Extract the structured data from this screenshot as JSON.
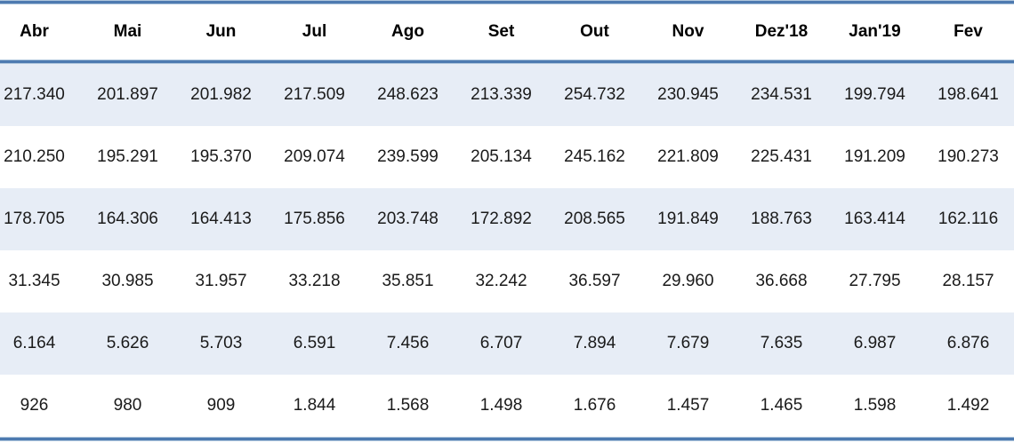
{
  "table": {
    "columns": [
      "Abr",
      "Mai",
      "Jun",
      "Jul",
      "Ago",
      "Set",
      "Out",
      "Nov",
      "Dez'18",
      "Jan'19",
      "Fev"
    ],
    "rows": [
      [
        "217.340",
        "201.897",
        "201.982",
        "217.509",
        "248.623",
        "213.339",
        "254.732",
        "230.945",
        "234.531",
        "199.794",
        "198.641"
      ],
      [
        "210.250",
        "195.291",
        "195.370",
        "209.074",
        "239.599",
        "205.134",
        "245.162",
        "221.809",
        "225.431",
        "191.209",
        "190.273"
      ],
      [
        "178.705",
        "164.306",
        "164.413",
        "175.856",
        "203.748",
        "172.892",
        "208.565",
        "191.849",
        "188.763",
        "163.414",
        "162.116"
      ],
      [
        "31.345",
        "30.985",
        "31.957",
        "33.218",
        "35.851",
        "32.242",
        "36.597",
        "29.960",
        "36.668",
        "27.795",
        "28.157"
      ],
      [
        "6.164",
        "5.626",
        "5.703",
        "6.591",
        "7.456",
        "6.707",
        "7.894",
        "7.679",
        "7.635",
        "6.987",
        "6.876"
      ],
      [
        "926",
        "980",
        "909",
        "1.844",
        "1.568",
        "1.498",
        "1.676",
        "1.457",
        "1.465",
        "1.598",
        "1.492"
      ]
    ]
  },
  "colors": {
    "row_band": "#E7EDF6",
    "border_core": "#4D7AB0",
    "border_edge": "#AEC5DC",
    "body_text": "#1A1A1A",
    "header_text": "#000000"
  }
}
